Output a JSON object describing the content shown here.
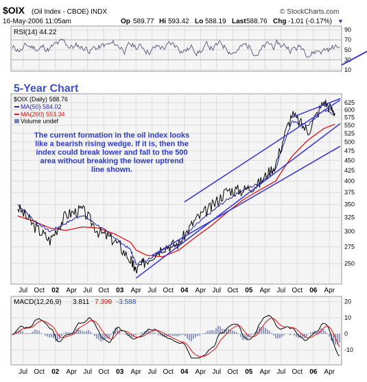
{
  "header": {
    "symbol": "$OIX",
    "name": "(Oil Index - CBOE) INDX",
    "date": "16-May-2006 11:05am",
    "open_label": "Op",
    "open": "589.77",
    "high_label": "Hi",
    "high": "593.42",
    "low_label": "Lo",
    "low": "588.19",
    "last_label": "Last",
    "last": "588.76",
    "chg_label": "Chg",
    "chg": "-1.01 (-0.17%)",
    "source": "© StockCharts.com",
    "chg_arrow": "▼"
  },
  "colors": {
    "panel_bg": "#f5f5f5",
    "grid": "#dcdcdc",
    "price_line": "#000000",
    "ma50": "#1f1fa8",
    "ma200": "#e01010",
    "trendline": "#3b3bd6",
    "annotation": "#2e3ac8",
    "macd_line": "#000000",
    "signal_line": "#e01010",
    "histogram": "#5060a0",
    "rsi_line": "#606080"
  },
  "chart_data": [
    {
      "type": "line",
      "panel": "rsi",
      "series": [
        {
          "name": "RSI(14)",
          "values_summary": "oscillating 30-80"
        }
      ],
      "legend": "RSI(14) 44.22",
      "ylim": [
        10,
        95
      ],
      "yticks": [
        "90",
        "70",
        "50",
        "30",
        "10"
      ],
      "last": 44.22
    },
    {
      "type": "line",
      "panel": "price",
      "title": "5-Year Chart",
      "legend": {
        "price": "$OIX (Daily) 588.76",
        "ma50": "MA(50) 584.02",
        "ma200": "MA(200) 553.34",
        "volume": "Volume undef"
      },
      "x": [
        "2001-06",
        "2001-09",
        "2001-12",
        "2002-03",
        "2002-06",
        "2002-09",
        "2002-12",
        "2003-03",
        "2003-04",
        "2003-06",
        "2003-09",
        "2003-12",
        "2004-03",
        "2004-06",
        "2004-09",
        "2004-12",
        "2005-03",
        "2005-06",
        "2005-09",
        "2005-12",
        "2006-03",
        "2006-05"
      ],
      "series": [
        {
          "name": "$OIX (Daily)",
          "values": [
            345,
            310,
            285,
            330,
            340,
            300,
            285,
            255,
            240,
            255,
            275,
            280,
            320,
            345,
            380,
            380,
            395,
            440,
            585,
            530,
            630,
            589
          ]
        },
        {
          "name": "MA(50)",
          "values": [
            350,
            320,
            300,
            315,
            330,
            310,
            290,
            270,
            250,
            255,
            270,
            280,
            310,
            335,
            360,
            380,
            395,
            430,
            560,
            550,
            600,
            584
          ]
        },
        {
          "name": "MA(200)",
          "values": [
            328,
            318,
            306,
            302,
            308,
            306,
            296,
            282,
            270,
            262,
            260,
            270,
            290,
            310,
            335,
            360,
            380,
            400,
            460,
            505,
            540,
            553
          ]
        }
      ],
      "yticks": [
        "625",
        "600",
        "575",
        "550",
        "525",
        "500",
        "475",
        "450",
        "425",
        "400",
        "375",
        "350",
        "325",
        "300",
        "275",
        "250"
      ],
      "log_scale": true,
      "annotation": "The current formation in the oil index looks like a bearish rising wedge. If it is, then the index could break lower and fall to the 500 area without breaking the lower uptrend line shown.",
      "trendlines": [
        {
          "from": [
            "2004-01",
            355
          ],
          "to": [
            "2006-06",
            635
          ]
        },
        {
          "from": [
            "2003-04",
            230
          ],
          "to": [
            "2006-06",
            555
          ]
        },
        {
          "from": [
            "2003-07",
            262
          ],
          "to": [
            "2006-06",
            488
          ]
        },
        {
          "from": [
            "2005-09",
            575
          ],
          "to": [
            "2006-06",
            640
          ]
        }
      ]
    },
    {
      "type": "line",
      "panel": "macd",
      "legend_label": "MACD(12,26,9)",
      "macd": "3.811",
      "signal": "7.399",
      "hist": "-3.588",
      "ylim": [
        -18,
        22
      ],
      "yticks": [
        "20",
        "10",
        "0",
        "-10"
      ]
    }
  ],
  "x_axis": {
    "labels": [
      "Jul",
      "Oct",
      "02",
      "Apr",
      "Jul",
      "Oct",
      "03",
      "Apr",
      "Jul",
      "Oct",
      "04",
      "Apr",
      "Jul",
      "Oct",
      "05",
      "Apr",
      "Jul",
      "Oct",
      "06",
      "Apr"
    ],
    "bold": [
      "02",
      "03",
      "04",
      "05",
      "06"
    ]
  }
}
